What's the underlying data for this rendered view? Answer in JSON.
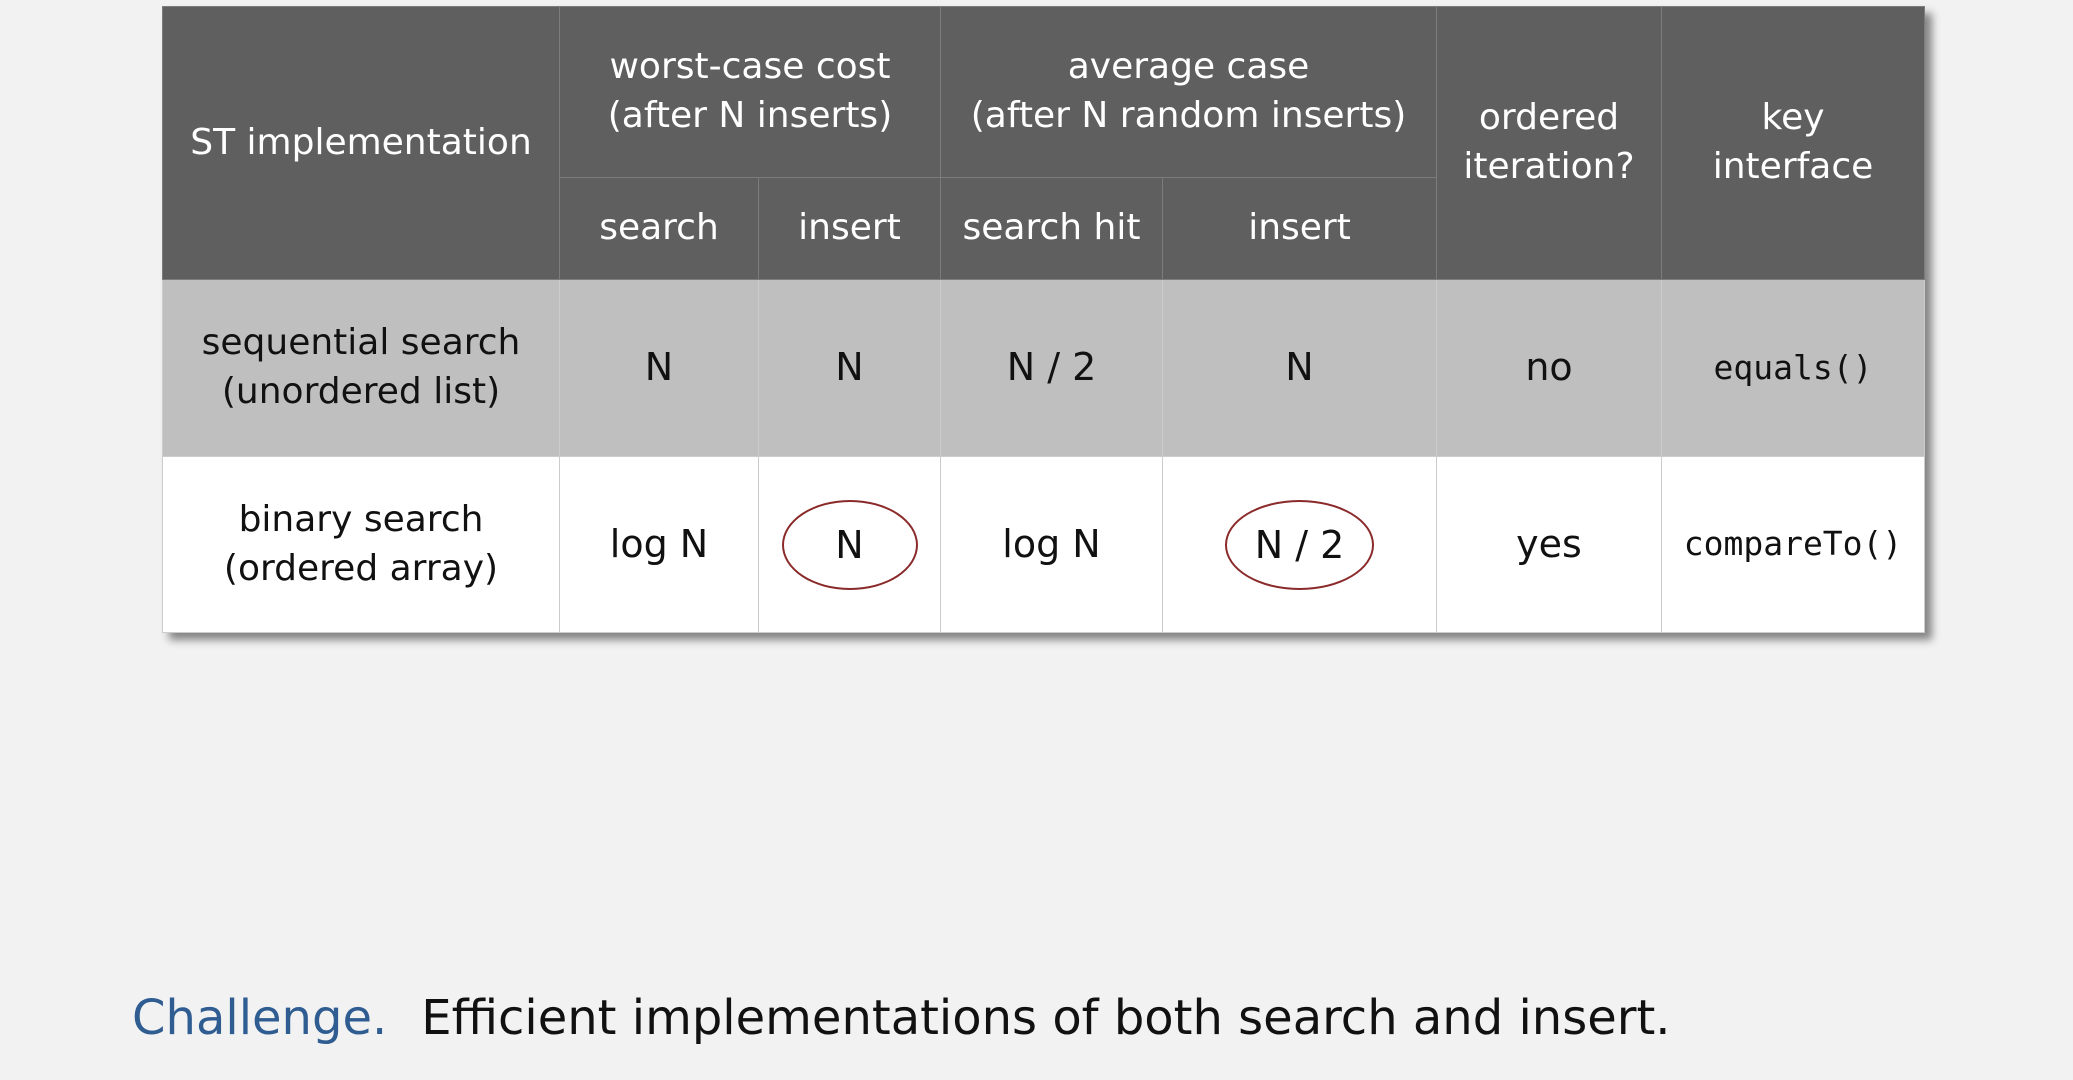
{
  "table": {
    "headers": {
      "implementation": "ST implementation",
      "worst_case": [
        "worst-case cost",
        "(after N inserts)"
      ],
      "average_case": [
        "average case",
        "(after N random inserts)"
      ],
      "ordered_iteration": [
        "ordered",
        "iteration?"
      ],
      "key_interface": [
        "key",
        "interface"
      ],
      "sub": {
        "worst_search": "search",
        "worst_insert": "insert",
        "avg_search_hit": "search hit",
        "avg_insert": "insert"
      }
    },
    "rows": [
      {
        "label": [
          "sequential search",
          "(unordered list)"
        ],
        "worst_search": "N",
        "worst_insert": "N",
        "avg_search_hit": "N / 2",
        "avg_insert": "N",
        "ordered_iteration": "no",
        "key_interface": "equals()"
      },
      {
        "label": [
          "binary search",
          "(ordered array)"
        ],
        "worst_search": "log N",
        "worst_insert": "N",
        "avg_search_hit": "log N",
        "avg_insert": "N / 2",
        "ordered_iteration": "yes",
        "key_interface": "compareTo()"
      }
    ]
  },
  "challenge": {
    "label": "Challenge.",
    "text": "Efficient implementations of both search and insert."
  },
  "colors": {
    "header_bg": "#5f5f5f",
    "row_shaded_bg": "#bfbfbf",
    "highlight_red": "#8b2a2a",
    "challenge_blue": "#2f5c91",
    "page_bg": "#f2f2f2"
  }
}
